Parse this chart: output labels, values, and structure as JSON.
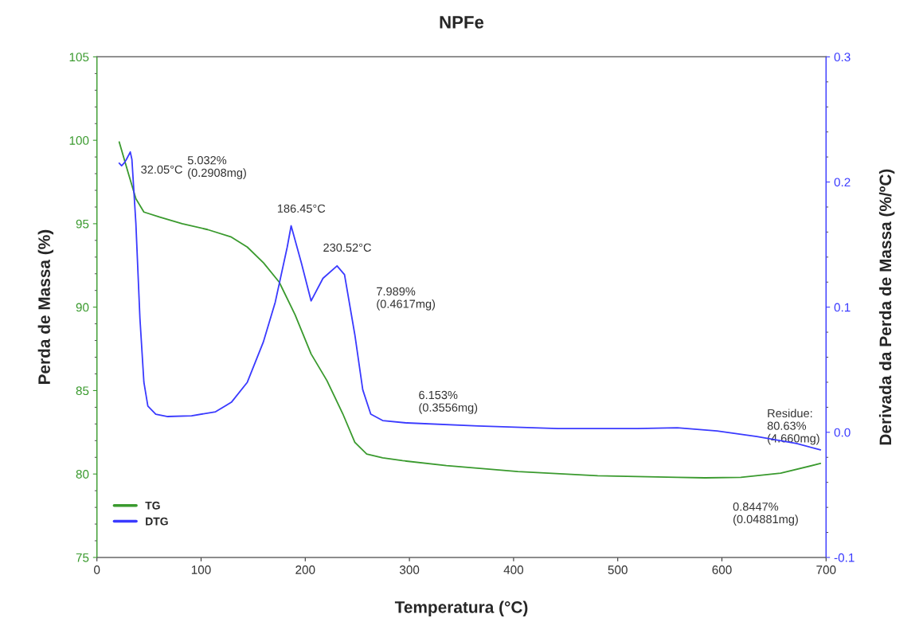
{
  "chart_data": {
    "type": "line",
    "title": "NPFe",
    "xlabel": "Temperatura (°C)",
    "ylabel": "Perda de Massa (%)",
    "y2label": "Derivada da Perda de Massa (%/ºC)",
    "xlim": [
      0,
      700
    ],
    "xticks": [
      0,
      100,
      200,
      300,
      400,
      500,
      600,
      700
    ],
    "ylim": [
      75,
      105
    ],
    "yticks": [
      75,
      80,
      85,
      90,
      95,
      100,
      105
    ],
    "y2lim": [
      -0.1,
      0.3
    ],
    "y2ticks": [
      -0.1,
      {
        "value": 0,
        "label": "0.0"
      },
      0.1,
      0.2,
      0.3
    ],
    "grid": false,
    "legend": "bottom left",
    "marker": "none",
    "line_style": "solid",
    "series": [
      {
        "name": "TG",
        "color": "#3a9a2e",
        "x": [
          21.4,
          29.8,
          37.4,
          45.1,
          60.4,
          81.8,
          106.2,
          129.1,
          144.4,
          160,
          175,
          190.2,
          205.6,
          220.8,
          236.1,
          247.6,
          259,
          274.3,
          293.4,
          335.5,
          404.2,
          480.7,
          557,
          583.8,
          618.2,
          656.4,
          694.6
        ],
        "values": [
          99.9,
          98.1,
          96.5,
          95.7,
          95.4,
          95.0,
          94.65,
          94.2,
          93.6,
          92.65,
          91.5,
          89.55,
          87.2,
          85.6,
          83.6,
          81.9,
          81.2,
          80.97,
          80.8,
          80.5,
          80.15,
          79.9,
          79.8,
          79.77,
          79.8,
          80.05,
          80.63
        ]
      },
      {
        "name": "DTG",
        "color": "#3a3aff",
        "axis": "y2",
        "x": [
          21.4,
          23.7,
          26.0,
          28.3,
          32.05,
          33.6,
          37.4,
          41.3,
          45.1,
          48.9,
          56.5,
          68.0,
          90.9,
          113.9,
          129.1,
          144.4,
          159.7,
          171.2,
          182.7,
          186.45,
          196.4,
          205.6,
          217,
          230.52,
          237.7,
          247.6,
          255.2,
          262.9,
          274.3,
          297.3,
          366,
          442.5,
          518.9,
          557.1,
          595.3,
          633.5,
          671.7,
          694.6
        ],
        "values": [
          0.215,
          0.213,
          0.215,
          0.218,
          0.224,
          0.218,
          0.167,
          0.091,
          0.04,
          0.021,
          0.0145,
          0.0126,
          0.0132,
          0.0164,
          0.024,
          0.04,
          0.072,
          0.104,
          0.148,
          0.165,
          0.135,
          0.105,
          0.123,
          0.133,
          0.126,
          0.078,
          0.034,
          0.0145,
          0.0094,
          0.0075,
          0.005,
          0.003,
          0.003,
          0.0036,
          0.0011,
          -0.0034,
          -0.009,
          -0.014
        ]
      }
    ],
    "annotations": [
      "32.05°C",
      "5.032%\n(0.2908mg)",
      "186.45°C",
      "230.52°C",
      "7.989%\n(0.4617mg)",
      "6.153%\n(0.3556mg)",
      "Residue:\n80.63%\n(4.660mg)",
      "0.8447%\n(0.04881mg)"
    ]
  }
}
